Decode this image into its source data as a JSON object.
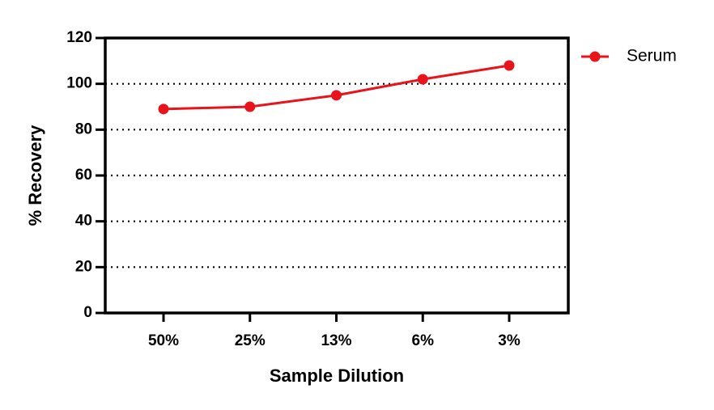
{
  "chart_data": {
    "type": "line",
    "x_label": "Sample Dilution",
    "y_label": "% Recovery",
    "categories": [
      "50%",
      "25%",
      "13%",
      "6%",
      "3%"
    ],
    "series": [
      {
        "name": "Serum",
        "color": "#e8131b",
        "values": [
          89,
          90,
          95,
          102,
          108
        ]
      }
    ],
    "ylim": [
      0,
      120
    ],
    "yticks": [
      0,
      20,
      40,
      60,
      80,
      100,
      120
    ],
    "grid": true,
    "legend": "right"
  }
}
